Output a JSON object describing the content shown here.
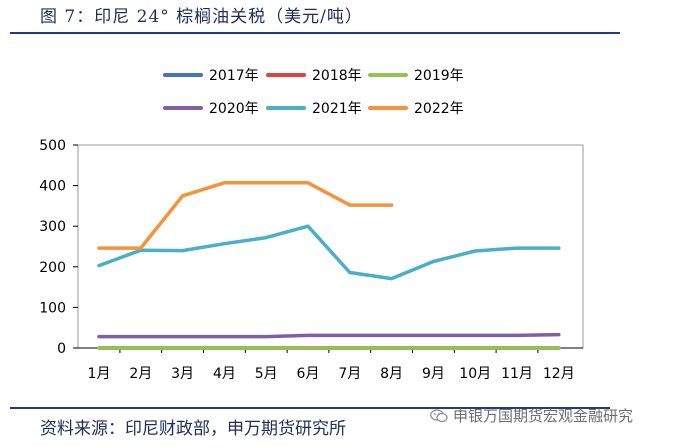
{
  "header": {
    "title": "图 7：印尼 24° 棕榈油关税（美元/吨）"
  },
  "footer": {
    "source": "资料来源：印尼财政部，申万期货研究所"
  },
  "watermark": {
    "text": "申银万国期货宏观金融研究",
    "icon": "wechat-icon"
  },
  "chart_data": {
    "type": "line",
    "title": "",
    "xlabel": "",
    "ylabel": "",
    "categories": [
      "1月",
      "2月",
      "3月",
      "4月",
      "5月",
      "6月",
      "7月",
      "8月",
      "9月",
      "10月",
      "11月",
      "12月"
    ],
    "ylim": [
      0,
      500
    ],
    "yticks": [
      0,
      100,
      200,
      300,
      400,
      500
    ],
    "grid": false,
    "legend_position": "top",
    "series": [
      {
        "name": "2017年",
        "color": "#4472C4",
        "values": [
          0,
          0,
          0,
          0,
          0,
          0,
          0,
          0,
          0,
          0,
          0,
          0
        ]
      },
      {
        "name": "2018年",
        "color": "#E0443A",
        "values": [
          0,
          0,
          0,
          0,
          0,
          0,
          0,
          0,
          0,
          0,
          0,
          0
        ]
      },
      {
        "name": "2019年",
        "color": "#92C353",
        "values": [
          0,
          0,
          0,
          0,
          0,
          0,
          0,
          0,
          0,
          0,
          0,
          0
        ]
      },
      {
        "name": "2020年",
        "color": "#7F5FA8",
        "values": [
          28,
          28,
          28,
          28,
          28,
          31,
          31,
          31,
          31,
          31,
          31,
          33
        ]
      },
      {
        "name": "2021年",
        "color": "#4AAFC7",
        "values": [
          203,
          241,
          240,
          257,
          272,
          300,
          186,
          171,
          213,
          239,
          246,
          246
        ]
      },
      {
        "name": "2022年",
        "color": "#F7923A",
        "values": [
          246,
          246,
          375,
          407,
          407,
          407,
          352,
          352,
          null,
          null,
          null,
          null
        ]
      }
    ]
  }
}
